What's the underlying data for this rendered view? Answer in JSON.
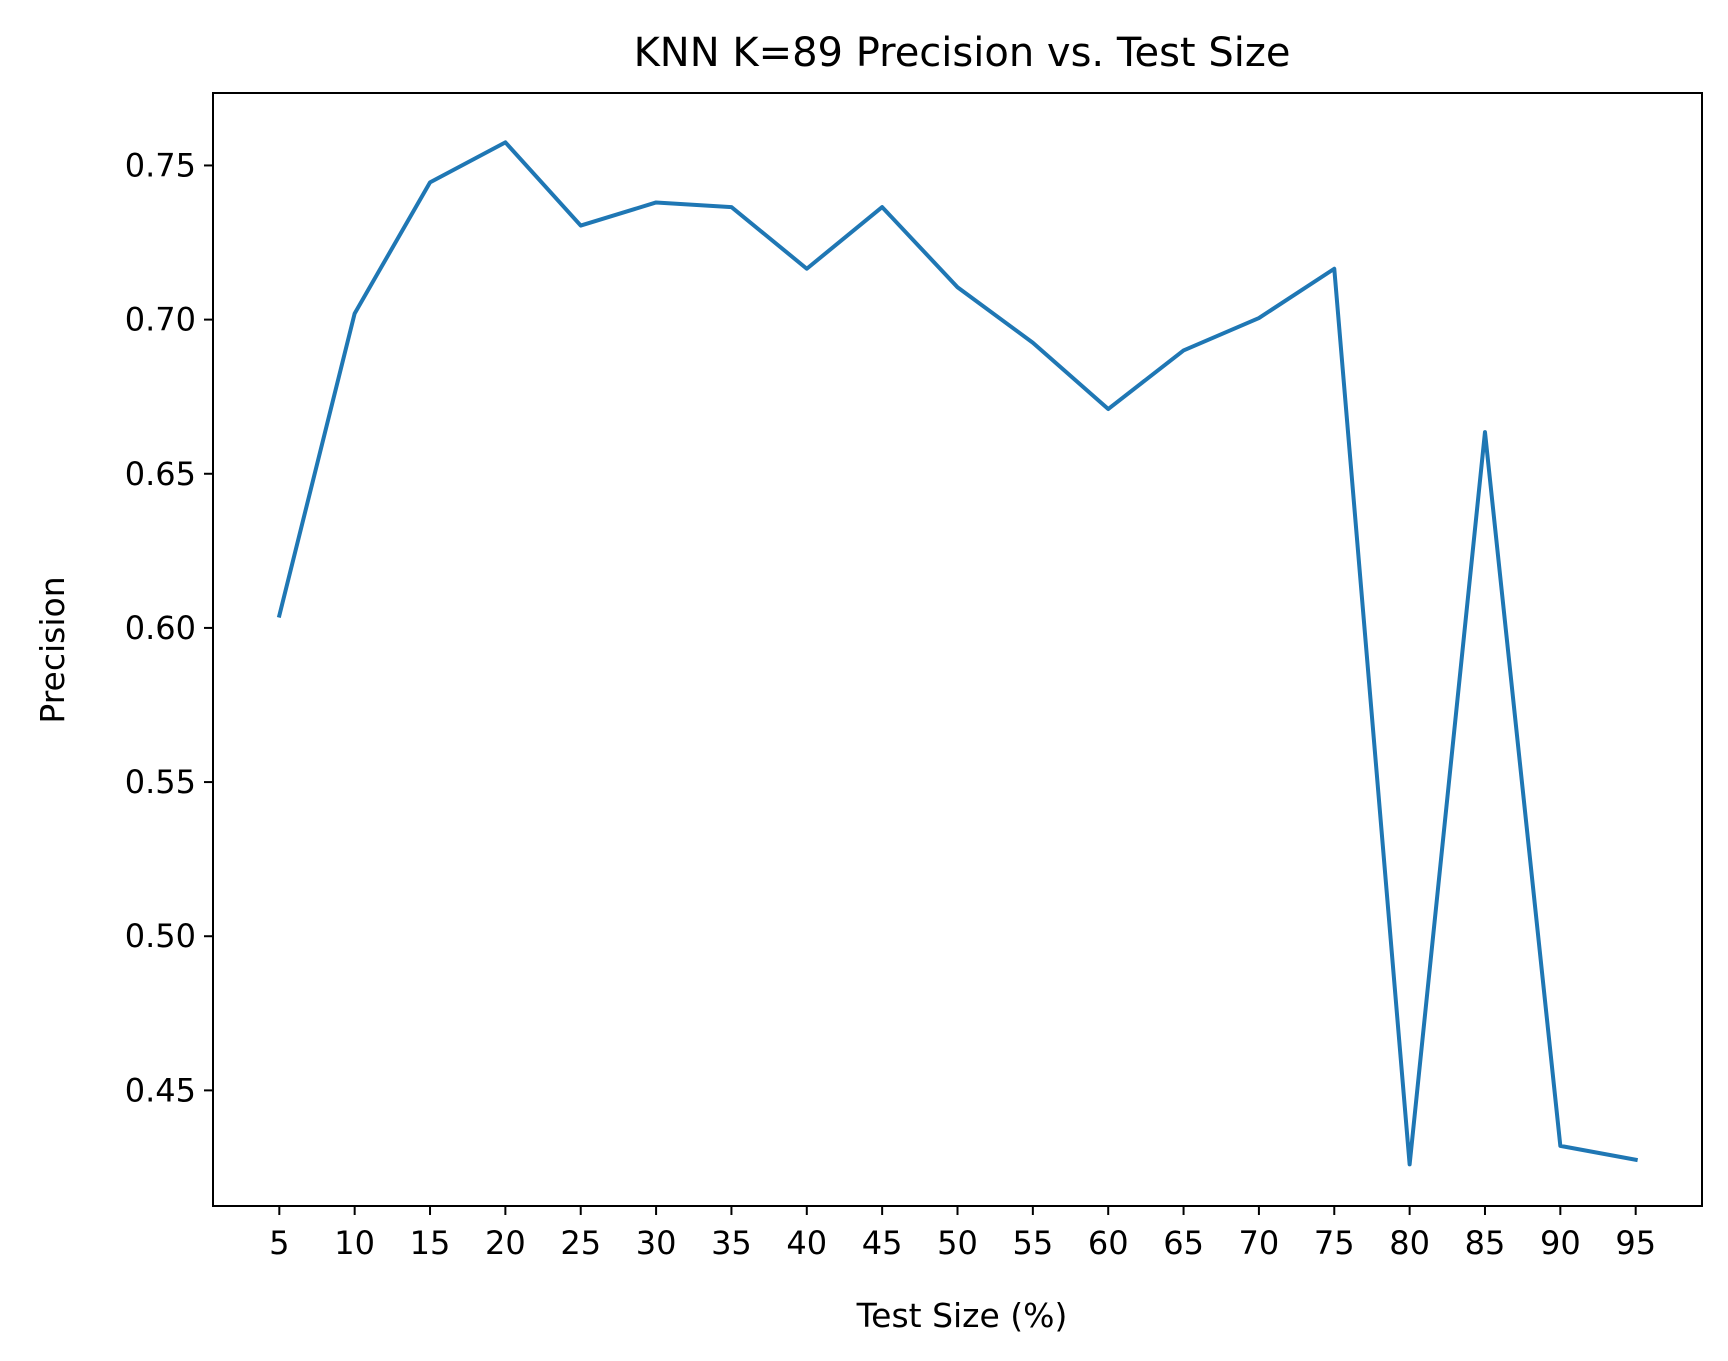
{
  "chart_data": {
    "type": "line",
    "title": "KNN K=89  Precision vs. Test Size",
    "xlabel": "Test Size (%)",
    "ylabel": "Precision",
    "x": [
      5,
      10,
      15,
      20,
      25,
      30,
      35,
      40,
      45,
      50,
      55,
      60,
      65,
      70,
      75,
      80,
      85,
      90,
      95
    ],
    "series": [
      {
        "values": [
          0.604,
          0.702,
          0.7445,
          0.7575,
          0.7305,
          0.738,
          0.7365,
          0.7165,
          0.7365,
          0.7105,
          0.6925,
          0.671,
          0.69,
          0.7005,
          0.7165,
          0.426,
          0.6635,
          0.432,
          0.4275
        ],
        "color": "#1f77b4"
      }
    ],
    "xticks": [
      "5",
      "10",
      "15",
      "20",
      "25",
      "30",
      "35",
      "40",
      "45",
      "50",
      "55",
      "60",
      "65",
      "70",
      "75",
      "80",
      "85",
      "90",
      "95"
    ],
    "yticks": [
      "0.45",
      "0.50",
      "0.55",
      "0.60",
      "0.65",
      "0.70",
      "0.75"
    ],
    "xlim": [
      0.6,
      99.4
    ],
    "ylim": [
      0.4125,
      0.7735
    ],
    "grid": false,
    "legend": "none"
  }
}
